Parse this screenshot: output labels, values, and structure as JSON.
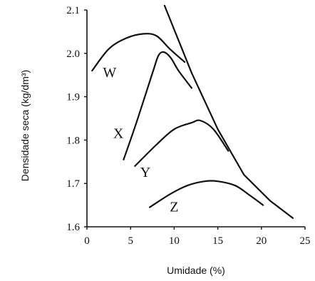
{
  "chart_data": {
    "type": "line",
    "xlabel": "Umidade (%)",
    "ylabel": "Densidade seca (kg/dm³)",
    "xlim": [
      0,
      25
    ],
    "ylim": [
      1.6,
      2.1
    ],
    "x_ticks": [
      "0",
      "5",
      "10",
      "15",
      "20",
      "25"
    ],
    "y_ticks": [
      "1.6",
      "1.7",
      "1.8",
      "1.9",
      "2.0",
      "2.1"
    ],
    "grid": false,
    "series": [
      {
        "name": "W",
        "x": [
          0.6,
          2.5,
          4.5,
          6.5,
          8.0,
          9.5,
          11.2
        ],
        "y": [
          1.96,
          2.01,
          2.035,
          2.045,
          2.04,
          2.01,
          1.98
        ]
      },
      {
        "name": "X",
        "x": [
          4.2,
          5.5,
          6.8,
          7.6,
          8.2,
          8.8,
          9.6,
          10.5,
          12.0
        ],
        "y": [
          1.755,
          1.83,
          1.91,
          1.96,
          1.995,
          2.003,
          1.99,
          1.96,
          1.92
        ]
      },
      {
        "name": "Y",
        "x": [
          5.5,
          8.0,
          10.0,
          12.0,
          13.0,
          14.5,
          16.2
        ],
        "y": [
          1.74,
          1.79,
          1.825,
          1.84,
          1.845,
          1.825,
          1.775
        ]
      },
      {
        "name": "Z",
        "x": [
          7.2,
          9.5,
          11.5,
          13.5,
          15.0,
          17.0,
          18.5,
          20.2
        ],
        "y": [
          1.645,
          1.675,
          1.695,
          1.705,
          1.705,
          1.695,
          1.675,
          1.65
        ]
      },
      {
        "name": "",
        "x": [
          8.9,
          12.0,
          15.0,
          18.0,
          21.0,
          23.6
        ],
        "y": [
          2.11,
          1.955,
          1.825,
          1.72,
          1.66,
          1.62
        ]
      }
    ],
    "labels": [
      {
        "text": "W",
        "x": 2.6,
        "y": 1.945
      },
      {
        "text": "X",
        "x": 3.6,
        "y": 1.805
      },
      {
        "text": "Y",
        "x": 6.7,
        "y": 1.715
      },
      {
        "text": "Z",
        "x": 10.0,
        "y": 1.635
      }
    ]
  }
}
